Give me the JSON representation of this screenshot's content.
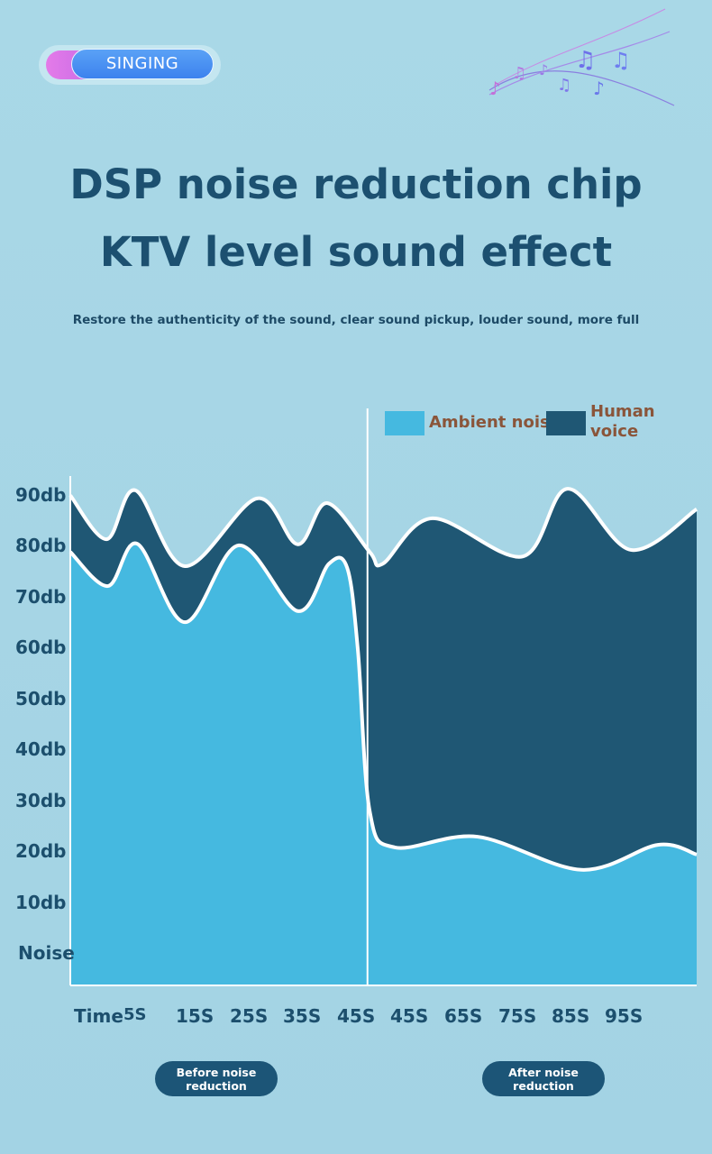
{
  "badge": {
    "label": "SINGING"
  },
  "header": {
    "title_line1": "DSP noise reduction chip",
    "title_line2": "KTV level sound effect",
    "subtitle": "Restore the authenticity of the sound, clear sound pickup, louder sound, more full"
  },
  "colors": {
    "ambient": "#45b9e0",
    "voice": "#1f5774",
    "title": "#1c5070",
    "legend_text": "#8a553a"
  },
  "phases": {
    "before": "Before noise reduction",
    "after": "After noise reduction"
  },
  "chart_data": {
    "type": "area",
    "title": "",
    "ylabel": "",
    "xlabel": "Time",
    "ylim": [
      -6,
      95
    ],
    "xlim": [
      0,
      100
    ],
    "y_ticks": [
      "Noise",
      "10db",
      "20db",
      "30db",
      "40db",
      "50db",
      "60db",
      "70db",
      "80db",
      "90db"
    ],
    "x_axis_title": "Time",
    "x_ticks": [
      "5S",
      "15S",
      "25S",
      "35S",
      "45S",
      "45S",
      "65S",
      "75S",
      "85S",
      "95S"
    ],
    "divider_x": 47.3,
    "legend": {
      "placement": "top-right",
      "entries": [
        "Ambient noise",
        "Human voice"
      ]
    },
    "series": [
      {
        "name": "Human voice",
        "points": [
          [
            0,
            90
          ],
          [
            5.8,
            81.4
          ],
          [
            10.4,
            91
          ],
          [
            18.3,
            76.1
          ],
          [
            29.8,
            89.4
          ],
          [
            36.3,
            80.4
          ],
          [
            41,
            88.5
          ],
          [
            47.8,
            78.9
          ],
          [
            49.9,
            76.6
          ],
          [
            57.8,
            85.5
          ],
          [
            72.2,
            78
          ],
          [
            79.4,
            91.3
          ],
          [
            89.5,
            79.3
          ],
          [
            100,
            87.3
          ]
        ]
      },
      {
        "name": "Ambient noise",
        "points": [
          [
            0,
            78.9
          ],
          [
            6,
            72.2
          ],
          [
            10.7,
            80.5
          ],
          [
            18.3,
            65.1
          ],
          [
            26.9,
            80.2
          ],
          [
            36.3,
            67.3
          ],
          [
            41.3,
            76.6
          ],
          [
            44.2,
            75.8
          ],
          [
            45.9,
            59.8
          ],
          [
            47.8,
            28
          ],
          [
            51.8,
            20.9
          ],
          [
            65,
            23
          ],
          [
            81.6,
            16.5
          ],
          [
            93.8,
            21.4
          ],
          [
            100,
            19.5
          ]
        ]
      }
    ]
  }
}
